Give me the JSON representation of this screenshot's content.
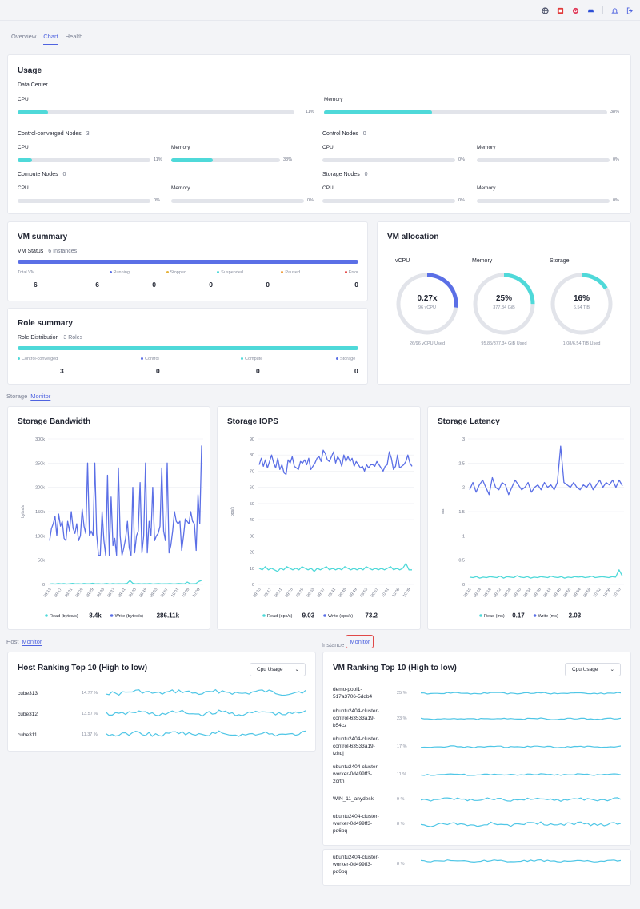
{
  "topbar": {
    "icons": [
      "globe-icon",
      "app-icon",
      "target-icon",
      "car-icon",
      "bell-icon",
      "logout-icon"
    ]
  },
  "tabs": [
    {
      "label": "Overview"
    },
    {
      "label": "Chart"
    },
    {
      "label": "Health"
    }
  ],
  "usage": {
    "title": "Usage",
    "dc": {
      "label": "Data Center",
      "cpu": {
        "label": "CPU",
        "pct": "11%",
        "value": 0.11
      },
      "memory": {
        "label": "Memory",
        "pct": "38%",
        "value": 0.38
      }
    },
    "groups": [
      {
        "name": "Control-converged Nodes",
        "count": "3",
        "cpu": {
          "label": "CPU",
          "pct": "11%",
          "value": 0.11
        },
        "memory": {
          "label": "Memory",
          "pct": "38%",
          "value": 0.38
        }
      },
      {
        "name": "Control Nodes",
        "count": "0",
        "cpu": {
          "label": "CPU",
          "pct": "0%",
          "value": 0
        },
        "memory": {
          "label": "Memory",
          "pct": "0%",
          "value": 0
        }
      },
      {
        "name": "Compute Nodes",
        "count": "0",
        "cpu": {
          "label": "CPU",
          "pct": "0%",
          "value": 0
        },
        "memory": {
          "label": "Memory",
          "pct": "0%",
          "value": 0
        }
      },
      {
        "name": "Storage Nodes",
        "count": "0",
        "cpu": {
          "label": "CPU",
          "pct": "0%",
          "value": 0
        },
        "memory": {
          "label": "Memory",
          "pct": "0%",
          "value": 0
        }
      }
    ]
  },
  "vm_summary": {
    "title": "VM summary",
    "status_label": "VM Status",
    "status_count": "6 Instances",
    "stats": [
      {
        "label": "Total VM",
        "value": "6",
        "color": ""
      },
      {
        "label": "Running",
        "value": "6",
        "color": "#5b6fe6"
      },
      {
        "label": "Stopped",
        "value": "0",
        "color": "#e6b33b"
      },
      {
        "label": "Suspended",
        "value": "0",
        "color": "#4fd9d9"
      },
      {
        "label": "Paused",
        "value": "0",
        "color": "#f0a040"
      },
      {
        "label": "Error",
        "value": "0",
        "color": "#e64b4b"
      }
    ]
  },
  "role_summary": {
    "title": "Role summary",
    "dist_label": "Role Distribution",
    "dist_count": "3 Roles",
    "stats": [
      {
        "label": "Control-converged",
        "value": "3",
        "color": "#4fd9d9"
      },
      {
        "label": "Control",
        "value": "0",
        "color": "#5b6fe6"
      },
      {
        "label": "Compute",
        "value": "0",
        "color": "#4fd9d9"
      },
      {
        "label": "Storage",
        "value": "0",
        "color": "#5b6fe6"
      }
    ]
  },
  "vm_allocation": {
    "title": "VM allocation",
    "items": [
      {
        "label": "vCPU",
        "main": "0.27x",
        "sub": "96 vCPU",
        "used": "26/96 vCPU Used",
        "value": 0.27,
        "color": "#5b6fe6"
      },
      {
        "label": "Memory",
        "main": "25%",
        "sub": "377.34 GiB",
        "used": "95.85/377.34 GiB Used",
        "value": 0.25,
        "color": "#4fd9d9"
      },
      {
        "label": "Storage",
        "main": "16%",
        "sub": "6.54 TiB",
        "used": "1.08/6.54 TiB Used",
        "value": 0.16,
        "color": "#4fd9d9"
      }
    ]
  },
  "storage_section": {
    "label": "Storage",
    "link": "Monitor"
  },
  "host_section": {
    "label": "Host",
    "link": "Monitor"
  },
  "instance_section": {
    "label": "Instance",
    "link": "Monitor"
  },
  "chart_data": [
    {
      "type": "line",
      "title": "Storage Bandwidth",
      "ylabel": "bytes/s",
      "ylim": [
        0,
        300000
      ],
      "yticks": [
        "300k",
        "250k",
        "200k",
        "150k",
        "100k",
        "50k",
        "0"
      ],
      "xticks": [
        "09:13",
        "09:17",
        "09:21",
        "09:25",
        "09:29",
        "09:33",
        "09:37",
        "09:41",
        "09:45",
        "09:49",
        "09:53",
        "09:57",
        "10:01",
        "10:05",
        "10:09"
      ],
      "series": [
        {
          "name": "Read (bytes/s)",
          "color": "#4fd9d9",
          "values": [
            1000,
            1500,
            800,
            2000,
            1200,
            1800,
            900,
            1500,
            2200,
            1100,
            1600,
            1000,
            1900,
            1300,
            1500,
            2500,
            1200,
            1700,
            1000,
            1400,
            2000,
            900,
            1800,
            1100,
            1600,
            1300,
            1500,
            2100,
            8000,
            2500,
            1200,
            1800,
            1100,
            1600,
            1400,
            1900,
            1000,
            1500,
            1800,
            1200,
            1500,
            1300,
            1800,
            1100,
            1400,
            2000,
            1600,
            1200,
            5000,
            1500,
            1300,
            1800,
            6000,
            8400
          ]
        },
        {
          "name": "Write (bytes/s)",
          "color": "#5b6fe6",
          "values": [
            90000,
            115000,
            125000,
            140000,
            100000,
            145000,
            120000,
            130000,
            95000,
            90000,
            130000,
            110000,
            150000,
            115000,
            105000,
            125000,
            90000,
            100000,
            155000,
            120000,
            105000,
            250000,
            100000,
            110000,
            100000,
            250000,
            105000,
            60000,
            60000,
            150000,
            90000,
            60000,
            225000,
            60000,
            180000,
            80000,
            95000,
            60000,
            240000,
            100000,
            60000,
            75000,
            95000,
            130000,
            75000,
            60000,
            200000,
            65000,
            100000,
            110000,
            210000,
            65000,
            100000,
            250000,
            65000,
            130000,
            100000,
            200000,
            90000,
            100000,
            105000,
            120000,
            240000,
            110000,
            90000,
            250000,
            65000,
            80000,
            110000,
            150000,
            130000,
            125000,
            130000,
            70000,
            100000,
            135000,
            130000,
            125000,
            150000,
            130000,
            125000,
            70000,
            185000,
            125000,
            286110
          ]
        }
      ],
      "legend": [
        {
          "name": "Read (bytes/s)",
          "value": "8.4k"
        },
        {
          "name": "Write (bytes/s)",
          "value": "286.11k"
        }
      ]
    },
    {
      "type": "line",
      "title": "Storage IOPS",
      "ylabel": "ops/s",
      "ylim": [
        0,
        90
      ],
      "yticks": [
        "90",
        "80",
        "70",
        "60",
        "50",
        "40",
        "30",
        "20",
        "10",
        "0"
      ],
      "xticks": [
        "09:13",
        "09:17",
        "09:21",
        "09:25",
        "09:29",
        "09:33",
        "09:37",
        "09:41",
        "09:45",
        "09:49",
        "09:53",
        "09:57",
        "10:01",
        "10:05",
        "10:09"
      ],
      "series": [
        {
          "name": "Read (ops/s)",
          "color": "#4fd9d9",
          "values": [
            10,
            9,
            11,
            9,
            10,
            9,
            8,
            10,
            9,
            11,
            10,
            9,
            10,
            9,
            11,
            10,
            9,
            10,
            8,
            10,
            9,
            10,
            11,
            9,
            10,
            9,
            10,
            9,
            11,
            10,
            9,
            10,
            9,
            10,
            9,
            11,
            10,
            9,
            10,
            9,
            10,
            9,
            10,
            11,
            9,
            10,
            9,
            10,
            13,
            9,
            9
          ]
        },
        {
          "name": "Write (ops/s)",
          "color": "#5b6fe6",
          "values": [
            74,
            78,
            73,
            77,
            72,
            76,
            80,
            75,
            72,
            78,
            71,
            74,
            69,
            68,
            77,
            75,
            79,
            73,
            72,
            71,
            76,
            75,
            77,
            74,
            78,
            71,
            73,
            75,
            78,
            79,
            76,
            83,
            81,
            77,
            76,
            79,
            82,
            75,
            79,
            77,
            73,
            80,
            76,
            79,
            76,
            78,
            73,
            76,
            74,
            72,
            73,
            70,
            74,
            72,
            74,
            74,
            73,
            76,
            74,
            72,
            70,
            73,
            74,
            82,
            78,
            71,
            73,
            80,
            72,
            73,
            74,
            76,
            80,
            75,
            73
          ]
        }
      ],
      "legend": [
        {
          "name": "Read (ops/s)",
          "value": "9.03"
        },
        {
          "name": "Write (ops/s)",
          "value": "73.2"
        }
      ]
    },
    {
      "type": "line",
      "title": "Storage Latency",
      "ylabel": "ms",
      "ylim": [
        0,
        3
      ],
      "yticks": [
        "3",
        "2.5",
        "2",
        "1.5",
        "1",
        "0.5",
        "0"
      ],
      "xticks": [
        "09:10",
        "09:14",
        "09:18",
        "09:22",
        "09:26",
        "09:30",
        "09:34",
        "09:38",
        "09:42",
        "09:46",
        "09:50",
        "09:54",
        "09:58",
        "10:02",
        "10:06",
        "10:10"
      ],
      "series": [
        {
          "name": "Read (ms)",
          "color": "#4fd9d9",
          "values": [
            0.15,
            0.14,
            0.16,
            0.13,
            0.15,
            0.14,
            0.16,
            0.15,
            0.14,
            0.17,
            0.13,
            0.16,
            0.15,
            0.14,
            0.18,
            0.15,
            0.14,
            0.16,
            0.13,
            0.15,
            0.14,
            0.16,
            0.15,
            0.14,
            0.17,
            0.15,
            0.14,
            0.16,
            0.13,
            0.15,
            0.14,
            0.16,
            0.15,
            0.16,
            0.14,
            0.15,
            0.17,
            0.14,
            0.15,
            0.16,
            0.15,
            0.14,
            0.16,
            0.15,
            0.3,
            0.17
          ]
        },
        {
          "name": "Write (ms)",
          "color": "#5b6fe6",
          "values": [
            1.95,
            2.1,
            1.9,
            2.05,
            2.15,
            2.0,
            1.85,
            2.2,
            2.0,
            1.95,
            2.1,
            2.05,
            1.85,
            2.0,
            2.15,
            2.05,
            1.95,
            2.0,
            2.1,
            1.9,
            2.0,
            2.05,
            1.95,
            2.1,
            2.0,
            2.05,
            1.95,
            2.1,
            2.85,
            2.1,
            2.05,
            2.0,
            2.1,
            2.0,
            1.95,
            2.05,
            2.0,
            2.1,
            1.95,
            2.05,
            2.15,
            2.0,
            2.1,
            2.05,
            2.15,
            2.0,
            2.15,
            2.03
          ]
        }
      ],
      "legend": [
        {
          "name": "Read (ms)",
          "value": "0.17"
        },
        {
          "name": "Write (ms)",
          "value": "2.03"
        }
      ]
    }
  ],
  "host_ranking": {
    "title": "Host Ranking Top 10 (High to low)",
    "select": "Cpu Usage",
    "rows": [
      {
        "name": "cube313",
        "pct": "14.77 %"
      },
      {
        "name": "cube312",
        "pct": "13.57 %"
      },
      {
        "name": "cube311",
        "pct": "11.37 %"
      }
    ]
  },
  "vm_ranking": {
    "title": "VM Ranking Top 10 (High to low)",
    "select": "Cpu Usage",
    "rows": [
      {
        "name_lines": [
          "demo-pool1-",
          "517a3706-5ddb4"
        ],
        "pct": "25 %"
      },
      {
        "name_lines": [
          "ubuntu2404-cluster-",
          "control-63533a19-",
          "b54cz"
        ],
        "pct": "23 %"
      },
      {
        "name_lines": [
          "ubuntu2404-cluster-",
          "control-63533a19-",
          "tzhdj"
        ],
        "pct": "17 %"
      },
      {
        "name_lines": [
          "ubuntu2404-cluster-",
          "worker-0d499ff3-",
          "2crtn"
        ],
        "pct": "11 %"
      },
      {
        "name_lines": [
          "WIN_11_anydesk"
        ],
        "pct": "9 %"
      },
      {
        "name_lines": [
          "ubuntu2404-cluster-",
          "worker-0d499ff3-",
          "pq6pq"
        ],
        "pct": "8 %"
      }
    ],
    "extra": {
      "name_lines": [
        "ubuntu2404-cluster-",
        "worker-0d499ff3-",
        "pq6pq"
      ],
      "pct": "8 %"
    }
  }
}
